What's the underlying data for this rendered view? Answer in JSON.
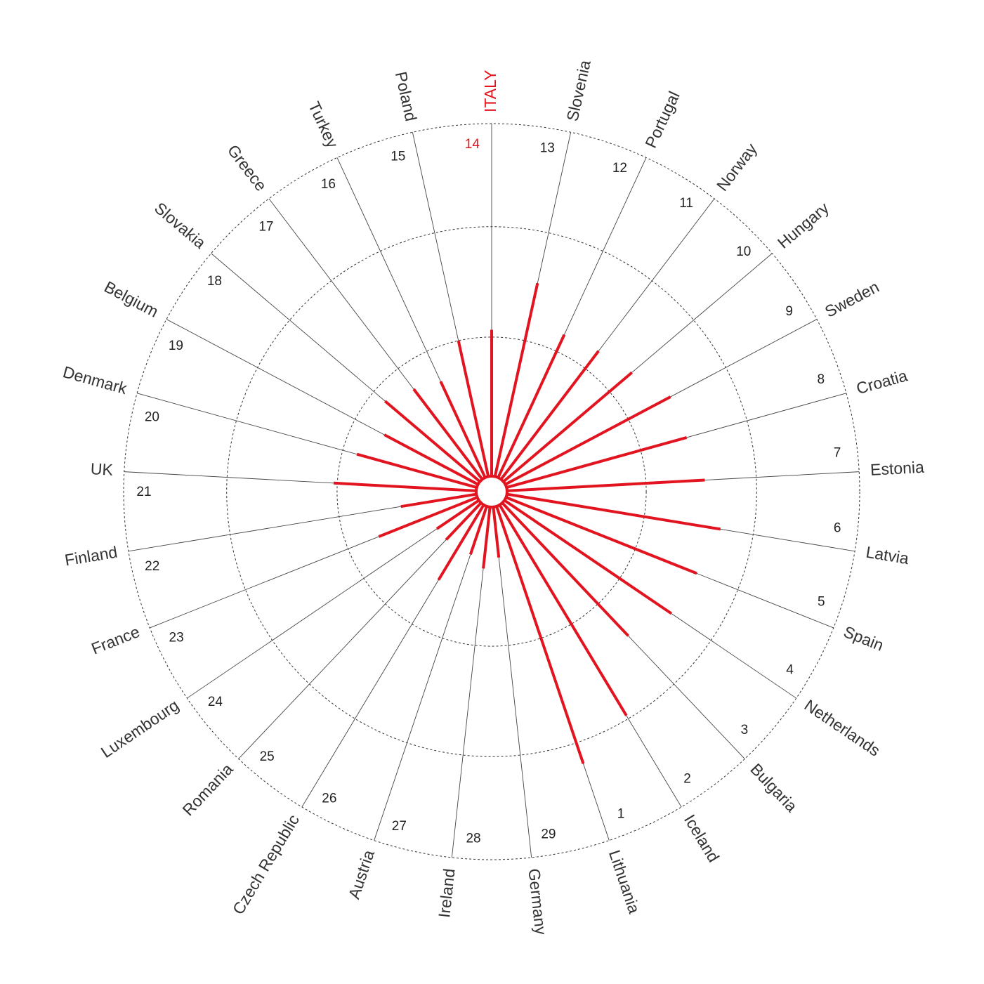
{
  "chart_data": {
    "type": "radial-bar",
    "title": "",
    "highlight": "ITALY",
    "highlight_color": "#e2141f",
    "bar_color": "#e2141f",
    "spoke_color": "#444444",
    "grid_style": "dashed",
    "grid_levels": [
      0.42,
      0.72,
      1.0
    ],
    "value_max": 1.0,
    "countries": [
      {
        "name": "ITALY",
        "rank": "14",
        "value": 0.44
      },
      {
        "name": "Slovenia",
        "rank": "13",
        "value": 0.58
      },
      {
        "name": "Portugal",
        "rank": "12",
        "value": 0.47
      },
      {
        "name": "Norway",
        "rank": "11",
        "value": 0.48
      },
      {
        "name": "Hungary",
        "rank": "10",
        "value": 0.5
      },
      {
        "name": "Sweden",
        "rank": "9",
        "value": 0.55
      },
      {
        "name": "Croatia",
        "rank": "8",
        "value": 0.55
      },
      {
        "name": "Estonia",
        "rank": "7",
        "value": 0.58
      },
      {
        "name": "Latvia",
        "rank": "6",
        "value": 0.63
      },
      {
        "name": "Spain",
        "rank": "5",
        "value": 0.6
      },
      {
        "name": "Netherlands",
        "rank": "4",
        "value": 0.59
      },
      {
        "name": "Bulgaria",
        "rank": "3",
        "value": 0.54
      },
      {
        "name": "Iceland",
        "rank": "2",
        "value": 0.71
      },
      {
        "name": "Lithuania",
        "rank": "1",
        "value": 0.78
      },
      {
        "name": "Germany",
        "rank": "29",
        "value": 0.18
      },
      {
        "name": "Ireland",
        "rank": "28",
        "value": 0.21
      },
      {
        "name": "Austria",
        "rank": "27",
        "value": 0.18
      },
      {
        "name": "Czech Republic",
        "rank": "26",
        "value": 0.28
      },
      {
        "name": "Romania",
        "rank": "25",
        "value": 0.18
      },
      {
        "name": "Luxembourg",
        "rank": "24",
        "value": 0.18
      },
      {
        "name": "France",
        "rank": "23",
        "value": 0.33
      },
      {
        "name": "Finland",
        "rank": "22",
        "value": 0.25
      },
      {
        "name": "UK",
        "rank": "21",
        "value": 0.43
      },
      {
        "name": "Denmark",
        "rank": "20",
        "value": 0.38
      },
      {
        "name": "Belgium",
        "rank": "19",
        "value": 0.33
      },
      {
        "name": "Slovakia",
        "rank": "18",
        "value": 0.38
      },
      {
        "name": "Greece",
        "rank": "17",
        "value": 0.35
      },
      {
        "name": "Turkey",
        "rank": "16",
        "value": 0.33
      },
      {
        "name": "Poland",
        "rank": "15",
        "value": 0.42
      }
    ]
  }
}
